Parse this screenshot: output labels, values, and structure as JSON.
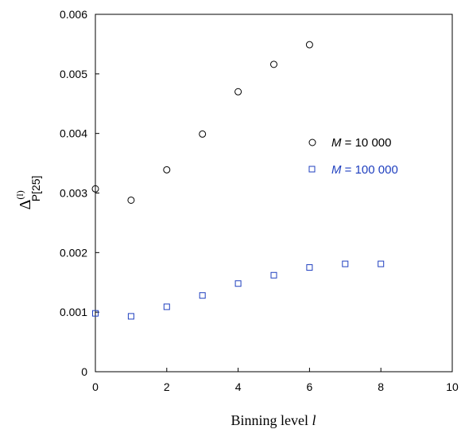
{
  "chart_data": {
    "type": "scatter",
    "xlabel_text": "Binning level ",
    "xlabel_var": "l",
    "ylabel": {
      "symbol": "Δ",
      "superscript": "(l)",
      "subscript": "P[25]"
    },
    "xlim": [
      0,
      10
    ],
    "ylim": [
      0,
      0.006
    ],
    "xticks": [
      "0",
      "2",
      "4",
      "6",
      "8",
      "10"
    ],
    "yticks": [
      "0",
      "0.001",
      "0.002",
      "0.003",
      "0.004",
      "0.005",
      "0.006"
    ],
    "grid": false,
    "legend_placement": "right-middle",
    "series": [
      {
        "name_var": "M",
        "name_rest": " = 10 000",
        "marker": "circle",
        "color": "#000000",
        "x": [
          0,
          1,
          2,
          3,
          4,
          5,
          6
        ],
        "y": [
          0.00307,
          0.00288,
          0.00339,
          0.00399,
          0.0047,
          0.00516,
          0.00549
        ]
      },
      {
        "name_var": "M",
        "name_rest": "  = 100 000",
        "marker": "square",
        "color": "#1f3fbf",
        "x": [
          0,
          1,
          2,
          3,
          4,
          5,
          6,
          7,
          8
        ],
        "y": [
          0.00098,
          0.00093,
          0.00109,
          0.00128,
          0.00148,
          0.00162,
          0.00175,
          0.00181,
          0.00181
        ]
      }
    ]
  }
}
